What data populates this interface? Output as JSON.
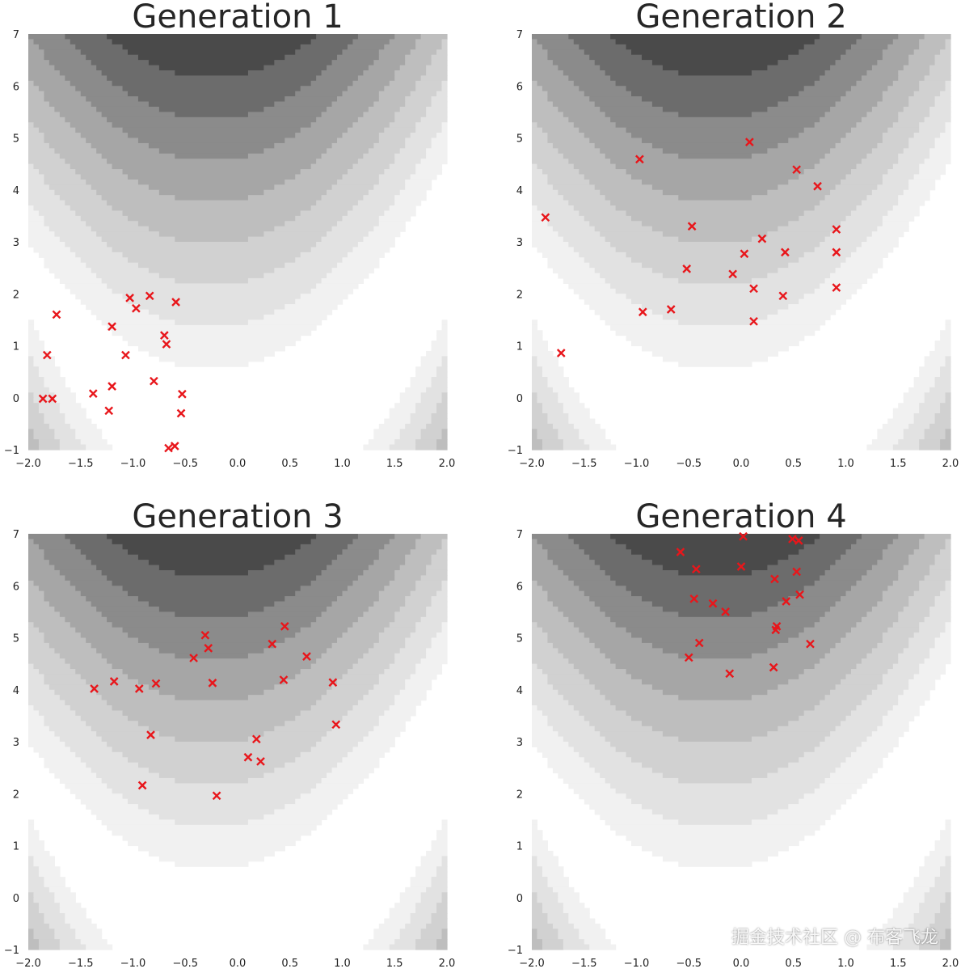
{
  "chart_data": [
    {
      "type": "scatter",
      "title": "Generation 1",
      "xlim": [
        -2.0,
        2.0
      ],
      "ylim": [
        -1,
        7
      ],
      "xticks": [
        "−2.0",
        "−1.5",
        "−1.0",
        "−0.5",
        "0.0",
        "0.5",
        "1.0",
        "1.5",
        "2.0"
      ],
      "yticks": [
        "−1",
        "0",
        "1",
        "2",
        "3",
        "4",
        "5",
        "6",
        "7"
      ],
      "points": [
        [
          -1.73,
          1.6
        ],
        [
          -1.82,
          0.82
        ],
        [
          -1.86,
          -0.02
        ],
        [
          -1.77,
          -0.02
        ],
        [
          -1.38,
          0.08
        ],
        [
          -1.2,
          1.37
        ],
        [
          -1.2,
          0.22
        ],
        [
          -1.23,
          -0.25
        ],
        [
          -1.07,
          0.82
        ],
        [
          -1.03,
          1.92
        ],
        [
          -0.97,
          1.72
        ],
        [
          -0.84,
          1.96
        ],
        [
          -0.8,
          0.32
        ],
        [
          -0.7,
          1.2
        ],
        [
          -0.68,
          1.03
        ],
        [
          -0.59,
          1.84
        ],
        [
          -0.53,
          0.07
        ],
        [
          -0.54,
          -0.3
        ],
        [
          -0.66,
          -0.97
        ],
        [
          -0.6,
          -0.93
        ]
      ],
      "marker_color": "#e8161b"
    },
    {
      "type": "scatter",
      "title": "Generation 2",
      "xlim": [
        -2.0,
        2.0
      ],
      "ylim": [
        -1,
        7
      ],
      "xticks": [
        "−2.0",
        "−1.5",
        "−1.0",
        "−0.5",
        "0.0",
        "0.5",
        "1.0",
        "1.5",
        "2.0"
      ],
      "yticks": [
        "−1",
        "0",
        "1",
        "2",
        "3",
        "4",
        "5",
        "6",
        "7"
      ],
      "points": [
        [
          -1.87,
          3.47
        ],
        [
          -1.72,
          0.86
        ],
        [
          -0.97,
          4.59
        ],
        [
          -0.94,
          1.65
        ],
        [
          -0.67,
          1.7
        ],
        [
          -0.47,
          3.3
        ],
        [
          -0.52,
          2.48
        ],
        [
          -0.08,
          2.38
        ],
        [
          0.03,
          2.77
        ],
        [
          0.08,
          4.92
        ],
        [
          0.12,
          2.1
        ],
        [
          0.12,
          1.47
        ],
        [
          0.2,
          3.06
        ],
        [
          0.4,
          1.96
        ],
        [
          0.42,
          2.8
        ],
        [
          0.53,
          4.39
        ],
        [
          0.73,
          4.07
        ],
        [
          0.91,
          3.24
        ],
        [
          0.91,
          2.8
        ],
        [
          0.91,
          2.12
        ]
      ],
      "marker_color": "#e8161b"
    },
    {
      "type": "scatter",
      "title": "Generation 3",
      "xlim": [
        -2.0,
        2.0
      ],
      "ylim": [
        -1,
        7
      ],
      "xticks": [
        "−2.0",
        "−1.5",
        "−1.0",
        "−0.5",
        "0.0",
        "0.5",
        "1.0",
        "1.5",
        "2.0"
      ],
      "yticks": [
        "−1",
        "0",
        "1",
        "2",
        "3",
        "4",
        "5",
        "6",
        "7"
      ],
      "points": [
        [
          -1.37,
          4.02
        ],
        [
          -1.18,
          4.16
        ],
        [
          -0.94,
          4.02
        ],
        [
          -0.78,
          4.12
        ],
        [
          -0.83,
          3.13
        ],
        [
          -0.91,
          2.16
        ],
        [
          -0.42,
          4.61
        ],
        [
          -0.31,
          5.05
        ],
        [
          -0.28,
          4.8
        ],
        [
          -0.24,
          4.13
        ],
        [
          -0.2,
          1.96
        ],
        [
          0.1,
          2.7
        ],
        [
          0.18,
          3.05
        ],
        [
          0.22,
          2.62
        ],
        [
          0.33,
          4.88
        ],
        [
          0.45,
          5.22
        ],
        [
          0.44,
          4.19
        ],
        [
          0.66,
          4.64
        ],
        [
          0.91,
          4.14
        ],
        [
          0.94,
          3.33
        ]
      ],
      "marker_color": "#e8161b"
    },
    {
      "type": "scatter",
      "title": "Generation 4",
      "xlim": [
        -2.0,
        2.0
      ],
      "ylim": [
        -1,
        7
      ],
      "xticks": [
        "−2.0",
        "−1.5",
        "−1.0",
        "−0.5",
        "0.0",
        "0.5",
        "1.0",
        "1.5",
        "2.0"
      ],
      "yticks": [
        "−1",
        "0",
        "1",
        "2",
        "3",
        "4",
        "5",
        "6",
        "7"
      ],
      "points": [
        [
          -0.58,
          6.65
        ],
        [
          -0.43,
          6.32
        ],
        [
          -0.45,
          5.75
        ],
        [
          -0.27,
          5.66
        ],
        [
          -0.15,
          5.5
        ],
        [
          -0.4,
          4.9
        ],
        [
          -0.5,
          4.62
        ],
        [
          -0.11,
          4.31
        ],
        [
          0.0,
          6.37
        ],
        [
          0.02,
          6.95
        ],
        [
          0.32,
          6.13
        ],
        [
          0.33,
          5.15
        ],
        [
          0.34,
          5.22
        ],
        [
          0.43,
          5.7
        ],
        [
          0.49,
          6.9
        ],
        [
          0.53,
          6.27
        ],
        [
          0.55,
          6.87
        ],
        [
          0.56,
          5.83
        ],
        [
          0.66,
          4.88
        ],
        [
          0.31,
          4.43
        ]
      ],
      "marker_color": "#e8161b"
    }
  ],
  "watermark": "掘金技术社区 @ 布客飞龙"
}
